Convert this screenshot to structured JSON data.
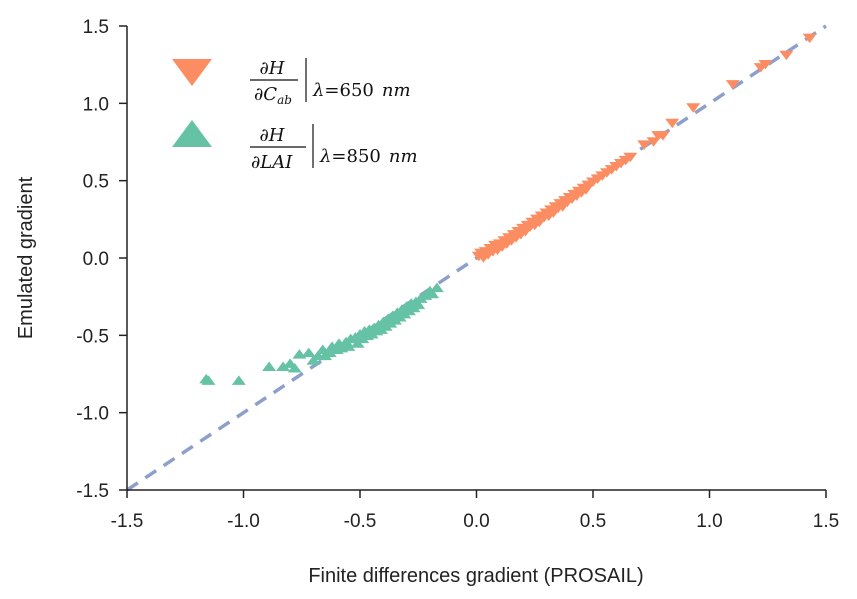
{
  "chart_data": {
    "type": "scatter",
    "xlabel": "Finite differences gradient (PROSAIL)",
    "ylabel": "Emulated gradient",
    "xlim": [
      -1.5,
      1.5
    ],
    "ylim": [
      -1.5,
      1.5
    ],
    "xticks": [
      "-1.5",
      "-1.0",
      "-0.5",
      "0.0",
      "0.5",
      "1.0",
      "1.5"
    ],
    "yticks": [
      "1.5",
      "1.0",
      "0.5",
      "0.0",
      "-0.5",
      "-1.0",
      "-1.5"
    ],
    "grid": false,
    "legend_position": "top-left",
    "reference_line": {
      "style": "dashed",
      "color": "#8da0cb",
      "x": [
        -1.5,
        1.5
      ],
      "y": [
        -1.5,
        1.5
      ]
    },
    "series": [
      {
        "marker": "triangle-down",
        "color": "#fc8d62",
        "legend": {
          "numerator": "∂H",
          "denominator_prefix": "∂C",
          "denominator_sub": "ab",
          "lambda": "λ",
          "equals": "=",
          "value": "650",
          "unit": "nm"
        },
        "points": [
          [
            0.01,
            0.02
          ],
          [
            0.02,
            0.04
          ],
          [
            0.03,
            0.01
          ],
          [
            0.04,
            0.05
          ],
          [
            0.05,
            0.03
          ],
          [
            0.06,
            0.07
          ],
          [
            0.07,
            0.05
          ],
          [
            0.08,
            0.09
          ],
          [
            0.09,
            0.06
          ],
          [
            0.1,
            0.1
          ],
          [
            0.11,
            0.08
          ],
          [
            0.12,
            0.12
          ],
          [
            0.13,
            0.1
          ],
          [
            0.14,
            0.14
          ],
          [
            0.15,
            0.12
          ],
          [
            0.16,
            0.16
          ],
          [
            0.17,
            0.14
          ],
          [
            0.18,
            0.18
          ],
          [
            0.19,
            0.16
          ],
          [
            0.2,
            0.2
          ],
          [
            0.21,
            0.18
          ],
          [
            0.22,
            0.22
          ],
          [
            0.23,
            0.21
          ],
          [
            0.24,
            0.24
          ],
          [
            0.25,
            0.22
          ],
          [
            0.26,
            0.26
          ],
          [
            0.27,
            0.24
          ],
          [
            0.28,
            0.28
          ],
          [
            0.29,
            0.27
          ],
          [
            0.3,
            0.3
          ],
          [
            0.31,
            0.28
          ],
          [
            0.32,
            0.32
          ],
          [
            0.33,
            0.3
          ],
          [
            0.34,
            0.34
          ],
          [
            0.35,
            0.33
          ],
          [
            0.36,
            0.36
          ],
          [
            0.37,
            0.34
          ],
          [
            0.38,
            0.38
          ],
          [
            0.39,
            0.37
          ],
          [
            0.4,
            0.4
          ],
          [
            0.41,
            0.39
          ],
          [
            0.42,
            0.42
          ],
          [
            0.43,
            0.41
          ],
          [
            0.44,
            0.44
          ],
          [
            0.45,
            0.43
          ],
          [
            0.46,
            0.46
          ],
          [
            0.47,
            0.45
          ],
          [
            0.48,
            0.48
          ],
          [
            0.5,
            0.5
          ],
          [
            0.52,
            0.52
          ],
          [
            0.54,
            0.54
          ],
          [
            0.56,
            0.56
          ],
          [
            0.58,
            0.58
          ],
          [
            0.6,
            0.6
          ],
          [
            0.62,
            0.62
          ],
          [
            0.64,
            0.64
          ],
          [
            0.66,
            0.66
          ],
          [
            0.72,
            0.74
          ],
          [
            0.76,
            0.76
          ],
          [
            0.78,
            0.8
          ],
          [
            0.8,
            0.8
          ],
          [
            0.84,
            0.88
          ],
          [
            0.93,
            0.98
          ],
          [
            1.1,
            1.13
          ],
          [
            1.22,
            1.24
          ],
          [
            1.24,
            1.26
          ],
          [
            1.33,
            1.32
          ],
          [
            1.43,
            1.43
          ]
        ]
      },
      {
        "marker": "triangle-up",
        "color": "#66c2a5",
        "legend": {
          "numerator": "∂H",
          "denominator_prefix": "∂LAI",
          "denominator_sub": "",
          "lambda": "λ",
          "equals": "=",
          "value": "850",
          "unit": "nm"
        },
        "points": [
          [
            -1.16,
            -0.79
          ],
          [
            -1.15,
            -0.8
          ],
          [
            -1.02,
            -0.8
          ],
          [
            -0.89,
            -0.71
          ],
          [
            -0.83,
            -0.71
          ],
          [
            -0.8,
            -0.69
          ],
          [
            -0.78,
            -0.72
          ],
          [
            -0.76,
            -0.63
          ],
          [
            -0.72,
            -0.62
          ],
          [
            -0.7,
            -0.67
          ],
          [
            -0.68,
            -0.64
          ],
          [
            -0.66,
            -0.6
          ],
          [
            -0.65,
            -0.64
          ],
          [
            -0.63,
            -0.62
          ],
          [
            -0.62,
            -0.58
          ],
          [
            -0.6,
            -0.6
          ],
          [
            -0.59,
            -0.56
          ],
          [
            -0.58,
            -0.59
          ],
          [
            -0.56,
            -0.55
          ],
          [
            -0.55,
            -0.58
          ],
          [
            -0.54,
            -0.53
          ],
          [
            -0.52,
            -0.52
          ],
          [
            -0.51,
            -0.56
          ],
          [
            -0.5,
            -0.5
          ],
          [
            -0.49,
            -0.53
          ],
          [
            -0.48,
            -0.48
          ],
          [
            -0.47,
            -0.51
          ],
          [
            -0.46,
            -0.47
          ],
          [
            -0.45,
            -0.5
          ],
          [
            -0.44,
            -0.46
          ],
          [
            -0.43,
            -0.48
          ],
          [
            -0.42,
            -0.44
          ],
          [
            -0.41,
            -0.47
          ],
          [
            -0.4,
            -0.42
          ],
          [
            -0.39,
            -0.45
          ],
          [
            -0.38,
            -0.4
          ],
          [
            -0.37,
            -0.43
          ],
          [
            -0.36,
            -0.38
          ],
          [
            -0.35,
            -0.41
          ],
          [
            -0.34,
            -0.36
          ],
          [
            -0.33,
            -0.39
          ],
          [
            -0.32,
            -0.34
          ],
          [
            -0.31,
            -0.37
          ],
          [
            -0.3,
            -0.32
          ],
          [
            -0.29,
            -0.35
          ],
          [
            -0.28,
            -0.3
          ],
          [
            -0.27,
            -0.33
          ],
          [
            -0.26,
            -0.29
          ],
          [
            -0.25,
            -0.31
          ],
          [
            -0.24,
            -0.27
          ],
          [
            -0.22,
            -0.25
          ],
          [
            -0.2,
            -0.22
          ],
          [
            -0.19,
            -0.24
          ],
          [
            -0.17,
            -0.2
          ]
        ]
      }
    ]
  }
}
